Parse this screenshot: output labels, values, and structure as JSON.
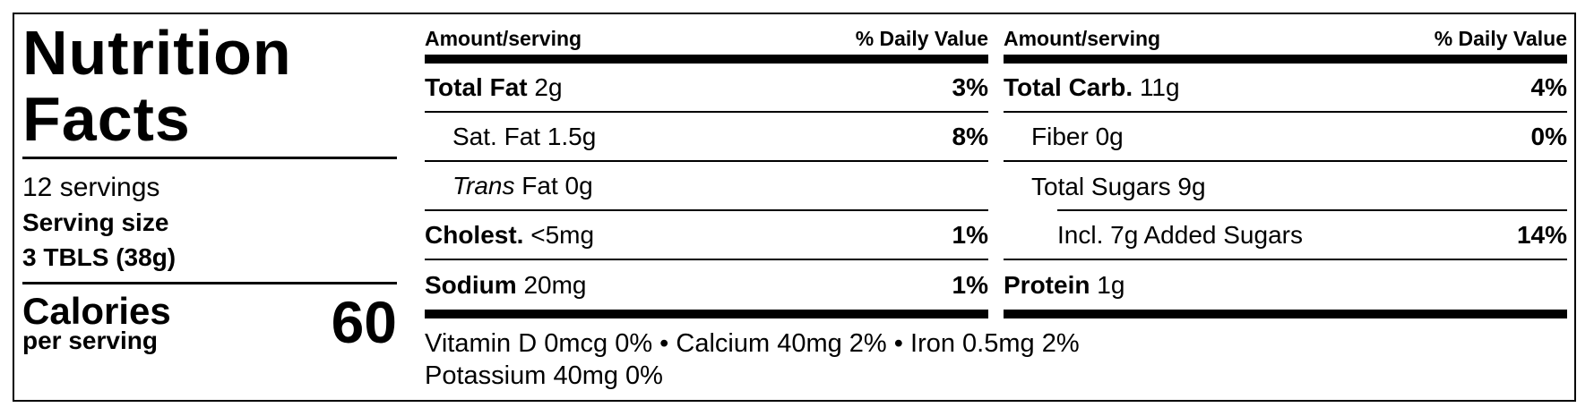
{
  "title": "Nutrition Facts",
  "servings": "12 servings",
  "serving_size": {
    "label": "Serving size",
    "value": "3 TBLS (38g)"
  },
  "calories": {
    "label": "Calories",
    "sublabel": "per serving",
    "value": 60
  },
  "columns": [
    {
      "headers": [
        "Amount/serving",
        "% Daily Value"
      ],
      "rows": [
        {
          "name": "Total Fat",
          "amount": "2g",
          "dv": "3%"
        },
        {
          "name": "Sat. Fat",
          "amount": "1.5g",
          "dv": "8%"
        },
        {
          "qualifier": "Trans",
          "name": "Fat",
          "amount": "0g"
        },
        {
          "name": "Cholest.",
          "amount": "<5mg",
          "dv": "1%"
        },
        {
          "name": "Sodium",
          "amount": "20mg",
          "dv": "1%"
        }
      ]
    },
    {
      "headers": [
        "Amount/serving",
        "% Daily Value"
      ],
      "rows": [
        {
          "name": "Total Carb.",
          "amount": "11g",
          "dv": "4%"
        },
        {
          "name": "Fiber",
          "amount": "0g",
          "dv": "0%"
        },
        {
          "name": "Total Sugars",
          "amount": "9g"
        },
        {
          "text": "Incl. 7g Added Sugars",
          "dv": "14%"
        },
        {
          "name": "Protein",
          "amount": "1g"
        }
      ]
    }
  ],
  "footer": [
    "Vitamin D 0mcg 0%",
    "Calcium 40mg 2%",
    "Iron 0.5mg 2%",
    "Potassium 40mg 0%"
  ]
}
